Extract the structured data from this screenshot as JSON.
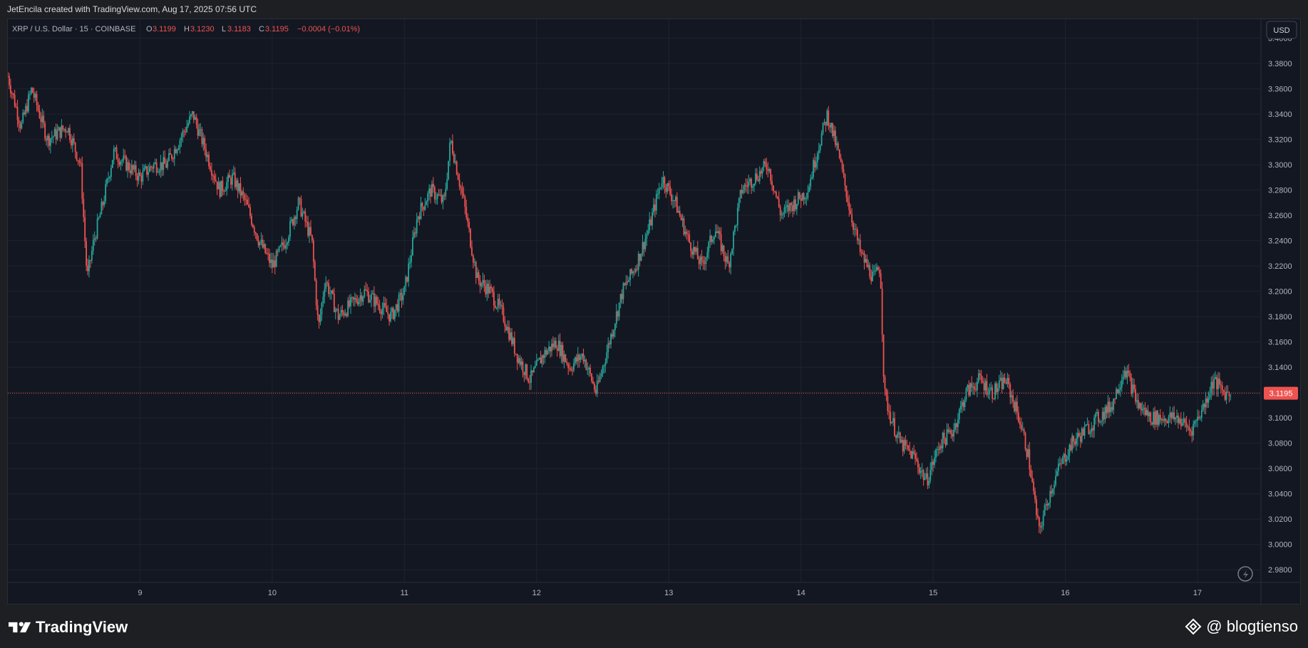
{
  "header": {
    "caption": "JetEncila created with TradingView.com, Aug 17, 2025 07:56 UTC"
  },
  "legend": {
    "symbol": "XRP / U.S. Dollar · 15 · COINBASE",
    "o_label": "O",
    "o_value": "3.1199",
    "h_label": "H",
    "h_value": "3.1230",
    "l_label": "L",
    "l_value": "3.1183",
    "c_label": "C",
    "c_value": "3.1195",
    "change": "−0.0004 (−0.01%)"
  },
  "currency_button": "USD",
  "colors": {
    "up": "#26a69a",
    "down": "#ef5350",
    "background": "#131722",
    "grid": "#1f2330",
    "text": "#b2b5be"
  },
  "footer": {
    "brand": "TradingView",
    "handle": "@ blogtienso"
  },
  "chart_data": {
    "type": "candlestick",
    "interval": "15",
    "current_price": 3.1195,
    "current_price_label": "3.1195",
    "ylim": [
      2.97,
      3.415
    ],
    "y_ticks": [
      "3.4000",
      "3.3800",
      "3.3600",
      "3.3400",
      "3.3200",
      "3.3000",
      "3.2800",
      "3.2600",
      "3.2400",
      "3.2200",
      "3.2000",
      "3.1800",
      "3.1600",
      "3.1400",
      "3.1200",
      "3.1000",
      "3.0800",
      "3.0600",
      "3.0400",
      "3.0200",
      "3.0000",
      "2.9800"
    ],
    "x_ticks": [
      "9",
      "10",
      "11",
      "12",
      "13",
      "14",
      "15",
      "16",
      "17"
    ],
    "price_path": [
      [
        8.0,
        3.37
      ],
      [
        8.05,
        3.35
      ],
      [
        8.1,
        3.33
      ],
      [
        8.18,
        3.36
      ],
      [
        8.3,
        3.32
      ],
      [
        8.45,
        3.33
      ],
      [
        8.55,
        3.3
      ],
      [
        8.6,
        3.21
      ],
      [
        8.65,
        3.24
      ],
      [
        8.72,
        3.27
      ],
      [
        8.8,
        3.31
      ],
      [
        8.9,
        3.3
      ],
      [
        9.0,
        3.29
      ],
      [
        9.1,
        3.3
      ],
      [
        9.2,
        3.3
      ],
      [
        9.3,
        3.32
      ],
      [
        9.4,
        3.34
      ],
      [
        9.5,
        3.31
      ],
      [
        9.6,
        3.28
      ],
      [
        9.7,
        3.29
      ],
      [
        9.8,
        3.27
      ],
      [
        9.9,
        3.24
      ],
      [
        10.0,
        3.22
      ],
      [
        10.1,
        3.24
      ],
      [
        10.2,
        3.27
      ],
      [
        10.3,
        3.24
      ],
      [
        10.35,
        3.17
      ],
      [
        10.4,
        3.21
      ],
      [
        10.5,
        3.18
      ],
      [
        10.6,
        3.19
      ],
      [
        10.7,
        3.2
      ],
      [
        10.8,
        3.19
      ],
      [
        10.9,
        3.18
      ],
      [
        11.0,
        3.2
      ],
      [
        11.1,
        3.26
      ],
      [
        11.2,
        3.28
      ],
      [
        11.3,
        3.27
      ],
      [
        11.35,
        3.32
      ],
      [
        11.45,
        3.27
      ],
      [
        11.55,
        3.21
      ],
      [
        11.65,
        3.2
      ],
      [
        11.75,
        3.18
      ],
      [
        11.85,
        3.15
      ],
      [
        11.95,
        3.13
      ],
      [
        12.05,
        3.15
      ],
      [
        12.15,
        3.16
      ],
      [
        12.25,
        3.14
      ],
      [
        12.35,
        3.15
      ],
      [
        12.45,
        3.12
      ],
      [
        12.55,
        3.16
      ],
      [
        12.65,
        3.2
      ],
      [
        12.75,
        3.22
      ],
      [
        12.85,
        3.25
      ],
      [
        12.95,
        3.29
      ],
      [
        13.05,
        3.27
      ],
      [
        13.15,
        3.24
      ],
      [
        13.25,
        3.22
      ],
      [
        13.35,
        3.25
      ],
      [
        13.45,
        3.22
      ],
      [
        13.55,
        3.28
      ],
      [
        13.65,
        3.29
      ],
      [
        13.75,
        3.3
      ],
      [
        13.85,
        3.26
      ],
      [
        13.95,
        3.27
      ],
      [
        14.05,
        3.28
      ],
      [
        14.12,
        3.31
      ],
      [
        14.2,
        3.34
      ],
      [
        14.28,
        3.31
      ],
      [
        14.38,
        3.26
      ],
      [
        14.45,
        3.23
      ],
      [
        14.55,
        3.21
      ],
      [
        14.6,
        3.22
      ],
      [
        14.63,
        3.12
      ],
      [
        14.68,
        3.1
      ],
      [
        14.75,
        3.08
      ],
      [
        14.85,
        3.07
      ],
      [
        14.95,
        3.05
      ],
      [
        15.05,
        3.08
      ],
      [
        15.15,
        3.09
      ],
      [
        15.25,
        3.12
      ],
      [
        15.35,
        3.13
      ],
      [
        15.45,
        3.12
      ],
      [
        15.55,
        3.13
      ],
      [
        15.65,
        3.1
      ],
      [
        15.72,
        3.07
      ],
      [
        15.8,
        3.01
      ],
      [
        15.88,
        3.04
      ],
      [
        15.95,
        3.06
      ],
      [
        16.05,
        3.08
      ],
      [
        16.15,
        3.09
      ],
      [
        16.25,
        3.1
      ],
      [
        16.35,
        3.11
      ],
      [
        16.45,
        3.14
      ],
      [
        16.55,
        3.11
      ],
      [
        16.65,
        3.1
      ],
      [
        16.75,
        3.1
      ],
      [
        16.85,
        3.1
      ],
      [
        16.95,
        3.09
      ],
      [
        17.05,
        3.11
      ],
      [
        17.12,
        3.13
      ],
      [
        17.2,
        3.12
      ],
      [
        17.25,
        3.1195
      ]
    ]
  }
}
